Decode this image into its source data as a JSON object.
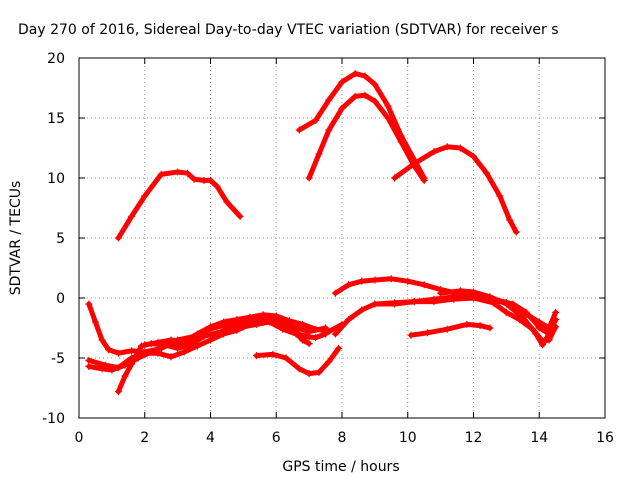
{
  "chart_data": {
    "type": "scatter",
    "title": "Day 270 of 2016, Sidereal Day-to-day VTEC variation (SDTVAR) for receiver s",
    "xlabel": "GPS time / hours",
    "ylabel": "SDTVAR / TECUs",
    "xlim": [
      0,
      16
    ],
    "ylim": [
      -10,
      20
    ],
    "xticks": [
      0,
      2,
      4,
      6,
      8,
      10,
      12,
      14,
      16
    ],
    "yticks": [
      -10,
      -5,
      0,
      5,
      10,
      15,
      20
    ],
    "grid": true,
    "legend": "none",
    "marker": "plus",
    "color": "#ff0000",
    "series": [
      {
        "points": [
          [
            1.2,
            5
          ],
          [
            1.6,
            6.8
          ],
          [
            2.0,
            8.5
          ],
          [
            2.5,
            10.3
          ],
          [
            3.0,
            10.5
          ],
          [
            3.3,
            10.4
          ],
          [
            3.5,
            9.9
          ],
          [
            3.8,
            9.8
          ],
          [
            4.0,
            9.8
          ],
          [
            4.2,
            9.3
          ],
          [
            4.5,
            8.0
          ],
          [
            4.9,
            6.8
          ]
        ]
      },
      {
        "points": [
          [
            6.7,
            14
          ],
          [
            7.2,
            14.8
          ],
          [
            7.6,
            16.5
          ],
          [
            8.0,
            18.0
          ],
          [
            8.4,
            18.7
          ],
          [
            8.7,
            18.5
          ],
          [
            9.0,
            17.8
          ],
          [
            9.4,
            16.0
          ],
          [
            9.8,
            13.5
          ],
          [
            10.2,
            11.5
          ],
          [
            10.5,
            10
          ]
        ]
      },
      {
        "points": [
          [
            7.0,
            10
          ],
          [
            7.3,
            12
          ],
          [
            7.6,
            14
          ],
          [
            8.0,
            15.8
          ],
          [
            8.4,
            16.8
          ],
          [
            8.7,
            16.9
          ],
          [
            9.0,
            16.4
          ],
          [
            9.4,
            15.0
          ],
          [
            9.8,
            13.0
          ],
          [
            10.2,
            11.0
          ],
          [
            10.5,
            9.8
          ]
        ]
      },
      {
        "points": [
          [
            9.6,
            10
          ],
          [
            10.2,
            11.2
          ],
          [
            10.8,
            12.2
          ],
          [
            11.2,
            12.6
          ],
          [
            11.6,
            12.5
          ],
          [
            12.0,
            11.8
          ],
          [
            12.4,
            10.4
          ],
          [
            12.8,
            8.5
          ],
          [
            13.1,
            6.5
          ],
          [
            13.3,
            5.5
          ]
        ]
      },
      {
        "points": [
          [
            0.3,
            -0.5
          ],
          [
            0.5,
            -2.0
          ],
          [
            0.7,
            -3.5
          ],
          [
            0.9,
            -4.3
          ],
          [
            1.2,
            -4.6
          ],
          [
            1.6,
            -4.4
          ],
          [
            2.0,
            -4.5
          ],
          [
            2.5,
            -4.2
          ],
          [
            3.0,
            -3.5
          ],
          [
            3.5,
            -3.2
          ],
          [
            4.0,
            -2.5
          ],
          [
            4.5,
            -2.0
          ],
          [
            5.0,
            -1.9
          ],
          [
            5.5,
            -1.6
          ],
          [
            6.0,
            -1.7
          ],
          [
            6.5,
            -2.4
          ],
          [
            7.0,
            -2.8
          ],
          [
            7.5,
            -2.5
          ]
        ]
      },
      {
        "points": [
          [
            0.3,
            -5.7
          ],
          [
            0.7,
            -5.9
          ],
          [
            1.0,
            -6.0
          ],
          [
            1.4,
            -5.6
          ],
          [
            1.8,
            -5.0
          ],
          [
            2.2,
            -4.5
          ],
          [
            2.6,
            -4.0
          ],
          [
            3.0,
            -3.8
          ],
          [
            3.4,
            -3.5
          ],
          [
            3.8,
            -2.8
          ],
          [
            4.2,
            -2.4
          ],
          [
            4.8,
            -2.2
          ],
          [
            5.4,
            -2.0
          ],
          [
            6.0,
            -1.9
          ],
          [
            6.4,
            -2.4
          ],
          [
            6.8,
            -3.5
          ],
          [
            7.0,
            -3.8
          ]
        ]
      },
      {
        "points": [
          [
            0.3,
            -5.2
          ],
          [
            0.8,
            -5.6
          ],
          [
            1.2,
            -5.8
          ],
          [
            1.6,
            -5.0
          ],
          [
            2.0,
            -4.6
          ],
          [
            2.4,
            -4.6
          ],
          [
            2.8,
            -4.9
          ],
          [
            3.2,
            -4.5
          ],
          [
            3.6,
            -4.0
          ],
          [
            4.0,
            -3.5
          ],
          [
            4.4,
            -3.0
          ],
          [
            4.8,
            -2.7
          ],
          [
            5.2,
            -2.2
          ],
          [
            5.6,
            -1.8
          ],
          [
            6.0,
            -1.8
          ],
          [
            6.4,
            -2.5
          ],
          [
            6.8,
            -3.2
          ],
          [
            7.2,
            -3.3
          ],
          [
            7.5,
            -3.0
          ]
        ]
      },
      {
        "points": [
          [
            1.2,
            -7.8
          ],
          [
            1.4,
            -6.5
          ],
          [
            1.6,
            -5.5
          ],
          [
            1.9,
            -4.0
          ],
          [
            2.2,
            -3.8
          ],
          [
            2.6,
            -3.9
          ],
          [
            3.0,
            -4.2
          ],
          [
            3.4,
            -3.9
          ],
          [
            3.8,
            -3.2
          ],
          [
            4.2,
            -2.9
          ],
          [
            4.6,
            -2.6
          ],
          [
            5.0,
            -2.4
          ],
          [
            5.4,
            -2.2
          ],
          [
            5.8,
            -2.0
          ],
          [
            6.2,
            -2.6
          ],
          [
            6.6,
            -3.0
          ],
          [
            7.0,
            -3.2
          ]
        ]
      },
      {
        "points": [
          [
            2.0,
            -3.9
          ],
          [
            2.4,
            -3.7
          ],
          [
            2.8,
            -3.5
          ],
          [
            3.2,
            -3.6
          ],
          [
            3.6,
            -3.0
          ],
          [
            4.0,
            -2.4
          ],
          [
            4.4,
            -2.0
          ],
          [
            4.8,
            -1.8
          ],
          [
            5.2,
            -1.6
          ],
          [
            5.6,
            -1.4
          ],
          [
            6.0,
            -1.5
          ],
          [
            6.4,
            -1.9
          ],
          [
            6.8,
            -2.2
          ],
          [
            7.2,
            -2.6
          ],
          [
            7.6,
            -2.8
          ],
          [
            8.0,
            -2.2
          ]
        ]
      },
      {
        "points": [
          [
            5.4,
            -4.8
          ],
          [
            5.9,
            -4.7
          ],
          [
            6.3,
            -5.0
          ],
          [
            6.7,
            -5.9
          ],
          [
            7.0,
            -6.3
          ],
          [
            7.3,
            -6.2
          ],
          [
            7.6,
            -5.3
          ],
          [
            7.9,
            -4.2
          ]
        ]
      },
      {
        "points": [
          [
            7.8,
            0.4
          ],
          [
            8.2,
            1.1
          ],
          [
            8.6,
            1.4
          ],
          [
            9.0,
            1.5
          ],
          [
            9.5,
            1.6
          ],
          [
            10.0,
            1.4
          ],
          [
            10.5,
            1.1
          ],
          [
            11.0,
            0.7
          ],
          [
            11.5,
            0.4
          ],
          [
            12.0,
            0.3
          ],
          [
            12.5,
            0.0
          ],
          [
            13.0,
            -0.4
          ],
          [
            13.5,
            -1.2
          ],
          [
            14.0,
            -2.0
          ],
          [
            14.3,
            -2.5
          ],
          [
            14.5,
            -1.2
          ]
        ]
      },
      {
        "points": [
          [
            7.8,
            -3.0
          ],
          [
            8.2,
            -1.8
          ],
          [
            8.6,
            -1.0
          ],
          [
            9.0,
            -0.5
          ],
          [
            9.6,
            -0.5
          ],
          [
            10.2,
            -0.3
          ],
          [
            10.8,
            -0.1
          ],
          [
            11.4,
            0.1
          ],
          [
            12.0,
            0.2
          ],
          [
            12.6,
            -0.1
          ],
          [
            13.2,
            -0.5
          ],
          [
            13.6,
            -1.2
          ],
          [
            14.0,
            -2.4
          ],
          [
            14.2,
            -2.8
          ],
          [
            14.4,
            -2.2
          ]
        ]
      },
      {
        "points": [
          [
            9.0,
            -0.5
          ],
          [
            9.6,
            -0.4
          ],
          [
            10.2,
            -0.3
          ],
          [
            10.8,
            -0.3
          ],
          [
            11.4,
            -0.1
          ],
          [
            12.0,
            0.0
          ],
          [
            12.6,
            -0.4
          ],
          [
            13.0,
            -1.2
          ],
          [
            13.4,
            -1.8
          ],
          [
            13.8,
            -2.6
          ],
          [
            14.1,
            -3.6
          ],
          [
            14.3,
            -3.5
          ],
          [
            14.5,
            -2.4
          ]
        ]
      },
      {
        "points": [
          [
            11.0,
            0.4
          ],
          [
            11.6,
            0.6
          ],
          [
            12.0,
            0.5
          ],
          [
            12.5,
            0.1
          ],
          [
            13.0,
            -0.5
          ],
          [
            13.5,
            -1.6
          ],
          [
            13.9,
            -3.0
          ],
          [
            14.1,
            -3.9
          ],
          [
            14.3,
            -3.0
          ],
          [
            14.5,
            -1.8
          ]
        ]
      },
      {
        "points": [
          [
            12.6,
            -0.2
          ],
          [
            13.0,
            -0.4
          ],
          [
            13.4,
            -0.9
          ],
          [
            13.8,
            -1.7
          ],
          [
            14.0,
            -2.5
          ],
          [
            14.2,
            -2.8
          ],
          [
            14.4,
            -2.0
          ]
        ]
      },
      {
        "points": [
          [
            10.1,
            -3.1
          ],
          [
            10.6,
            -2.9
          ],
          [
            11.2,
            -2.6
          ],
          [
            11.8,
            -2.2
          ],
          [
            12.2,
            -2.3
          ],
          [
            12.5,
            -2.5
          ]
        ]
      }
    ]
  }
}
